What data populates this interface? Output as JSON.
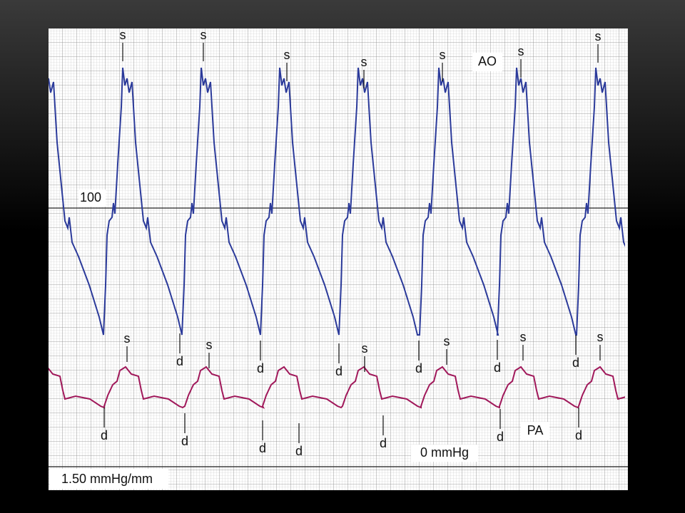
{
  "tracings": {
    "aortic": {
      "label": "AO",
      "systolic_markers": [
        "s",
        "s",
        "s",
        "s",
        "s",
        "s",
        "s"
      ],
      "diastolic_markers": [
        "d",
        "d",
        "d",
        "d",
        "d",
        "d"
      ]
    },
    "pulmonary": {
      "label": "PA",
      "systolic_markers": [
        "s",
        "s",
        "s",
        "s",
        "s",
        "s"
      ],
      "diastolic_markers": [
        "d",
        "d",
        "d",
        "d",
        "d",
        "d",
        "d"
      ]
    }
  },
  "scale": {
    "reference_level": "100",
    "zero_level": "0 mmHg",
    "calibration": "1.50 mmHg/mm"
  }
}
